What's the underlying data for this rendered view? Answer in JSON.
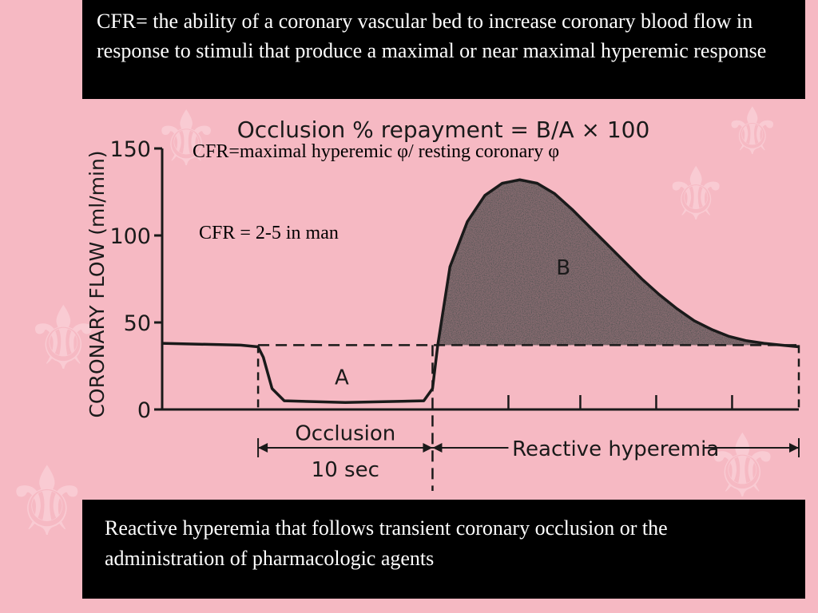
{
  "slide": {
    "top_text": "CFR= the ability of a coronary vascular bed to increase coronary blood flow in response to stimuli that produce a maximal or near maximal hyperemic response",
    "formula_text": "CFR=maximal hyperemic φ/ resting coronary φ",
    "range_text": "CFR = 2-5 in man",
    "bottom_text": "Reactive hyperemia that follows transient coronary occlusion or the administration of pharmacologic agents",
    "decoration_icon": "fleur-de-lis-icon",
    "colors": {
      "background": "#f6b9c3",
      "box": "#000000",
      "ink": "#1a1a1a"
    }
  },
  "chart_data": {
    "type": "area",
    "title": "Occlusion % repayment = B/A × 100",
    "ylabel": "CORONARY FLOW (ml/min)",
    "ylim": [
      0,
      150
    ],
    "yticks": [
      0,
      50,
      100,
      150
    ],
    "xlabel": "",
    "time_unit": "sec",
    "xlim": [
      -5.5,
      31
    ],
    "baseline_flow": 37,
    "series": [
      {
        "name": "",
        "x": [
          -5.5,
          -1,
          0,
          0.3,
          0.8,
          1.5,
          5,
          9.5,
          10,
          10.3,
          11,
          12,
          13,
          14,
          15,
          16,
          17,
          18,
          19,
          20,
          21,
          22,
          23,
          24,
          25,
          26,
          27,
          28,
          29,
          30,
          31
        ],
        "values": [
          38,
          37,
          36,
          30,
          12,
          5,
          4,
          5,
          12,
          37,
          82,
          108,
          123,
          130,
          132,
          130,
          124,
          115,
          105,
          95,
          85,
          75,
          66,
          58,
          51,
          46,
          42,
          39.5,
          38,
          37,
          36
        ]
      }
    ],
    "areas": [
      {
        "label": "A",
        "x": 4.8,
        "y": 19
      },
      {
        "label": "B",
        "x": 17.5,
        "y": 82
      }
    ],
    "annotations": [
      {
        "text": "Occlusion",
        "x": 5,
        "y": -13
      },
      {
        "text": "10 sec",
        "x": 5,
        "y": -34
      },
      {
        "text": "Reactive hyperemia",
        "x": 20.5,
        "y": -22
      }
    ],
    "intervals": [
      {
        "from": 0,
        "to": 10,
        "y": -22
      },
      {
        "from": 10,
        "to": 31,
        "y": -22
      }
    ]
  }
}
